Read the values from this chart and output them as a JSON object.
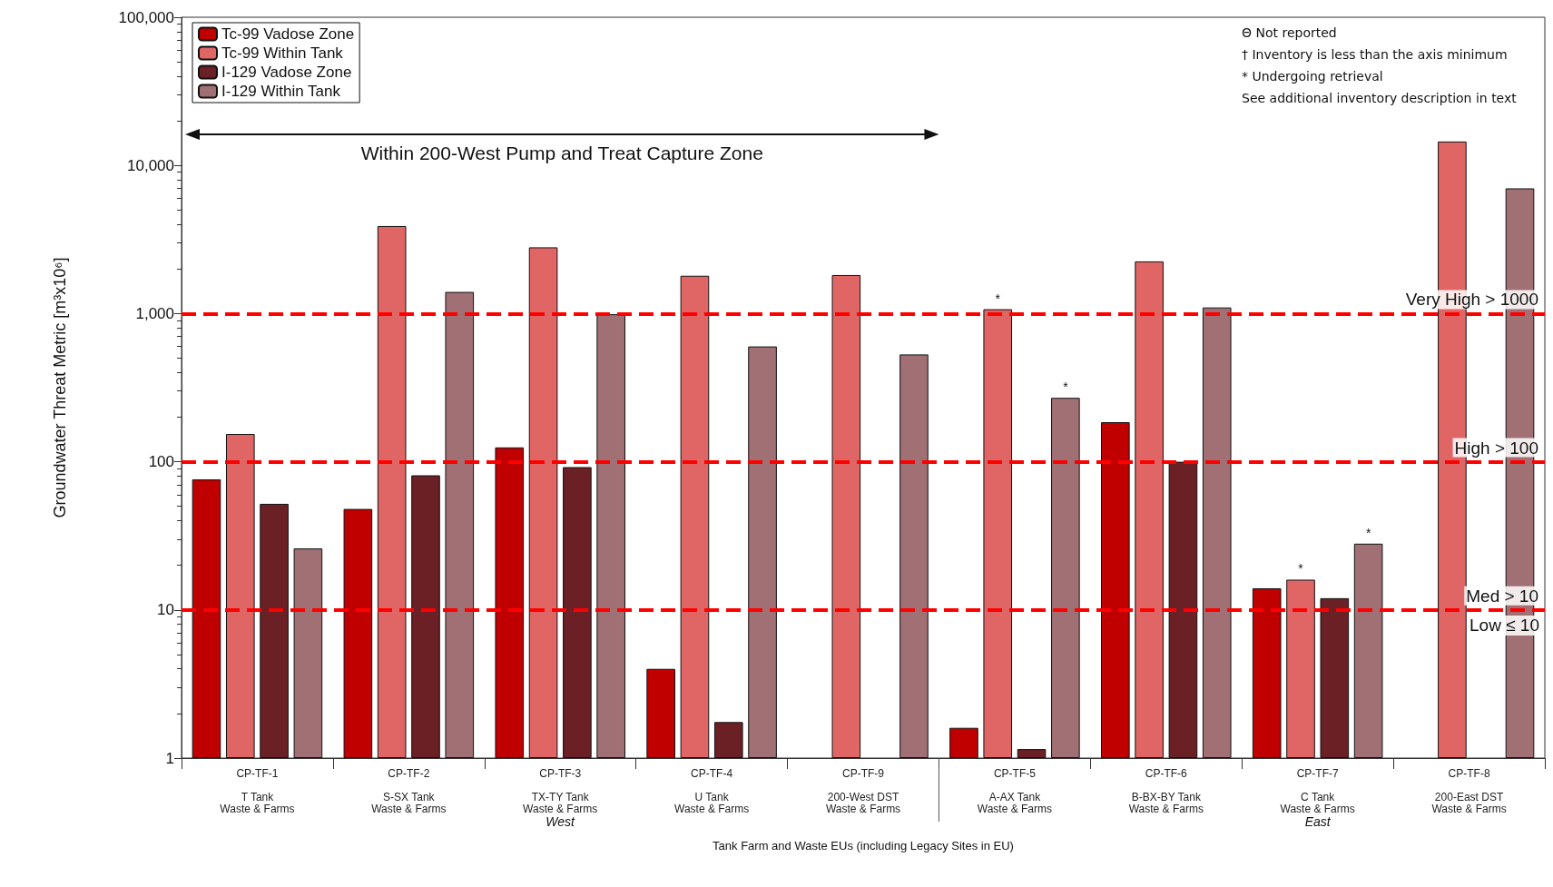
{
  "chart_data": {
    "type": "bar",
    "xlabel": "Tank Farm and Waste EUs (including Legacy Sites in EU)",
    "ylabel": "Groundwater Threat Metric [m³x10⁶]",
    "categories": [
      "CP-TF-1\n\nT Tank\nWaste & Farms",
      "CP-TF-2\n\nS-SX Tank\nWaste & Farms",
      "CP-TF-3\n\nTX-TY Tank\nWaste & Farms",
      "CP-TF-4\n\nU Tank\nWaste & Farms",
      "CP-TF-9\n\n200-West DST\nWaste & Farms",
      "CP-TF-5\n\nA-AX Tank\nWaste & Farms",
      "CP-TF-6\n\nB-BX-BY Tank\nWaste & Farms",
      "CP-TF-7\n\nC Tank\nWaste & Farms",
      "CP-TF-8\n\n200-East DST\nWaste & Farms"
    ],
    "series": [
      {
        "name": "Tc-99 Vadose Zone",
        "color": "#c00000",
        "values": [
          76,
          48,
          125,
          4,
          null,
          1.6,
          185,
          14,
          null
        ]
      },
      {
        "name": "Tc-99 Within Tank",
        "color": "#e06666",
        "values": [
          154,
          3900,
          2800,
          1800,
          1820,
          1070,
          2250,
          16,
          14500
        ],
        "value_labels": [
          null,
          null,
          null,
          null,
          null,
          "*",
          null,
          "*",
          null
        ]
      },
      {
        "name": "I-129 Vadose Zone",
        "color": "#6b2025",
        "values": [
          52,
          81,
          92,
          1.75,
          null,
          1.15,
          100,
          12,
          null
        ]
      },
      {
        "name": "I-129 Within Tank",
        "color": "#a07074",
        "values": [
          26,
          1400,
          990,
          600,
          530,
          270,
          1100,
          28,
          7000
        ],
        "value_labels": [
          null,
          null,
          null,
          null,
          null,
          "*",
          null,
          "*",
          null
        ]
      }
    ],
    "log": true,
    "ylim": [
      1,
      100000
    ],
    "yticks": [
      1,
      10,
      100,
      {
        "value": 1000,
        "label": "1,000"
      },
      {
        "value": 10000,
        "label": "10,000"
      },
      {
        "value": 100000,
        "label": "100,000"
      }
    ],
    "ref_lines": [
      {
        "axis": "y",
        "value": 1000,
        "label": "Very High > 1000",
        "color": "#ff0000",
        "line_style": "dashed"
      },
      {
        "axis": "y",
        "value": 100,
        "label": "High > 100",
        "color": "#ff0000",
        "line_style": "dashed"
      },
      {
        "axis": "y",
        "value": 10,
        "label": "Med > 10",
        "color": "#ff0000",
        "line_style": "dashed"
      }
    ],
    "annotations": [
      "Θ Not reported",
      "† Inventory is less than the axis minimum",
      "* Undergoing retrieval",
      "See additional inventory description in text",
      "Within 200-West Pump and Treat Capture Zone",
      "West",
      "East",
      {
        "text": "Low ≤ 10",
        "y": 10
      }
    ],
    "legend": "top left"
  }
}
